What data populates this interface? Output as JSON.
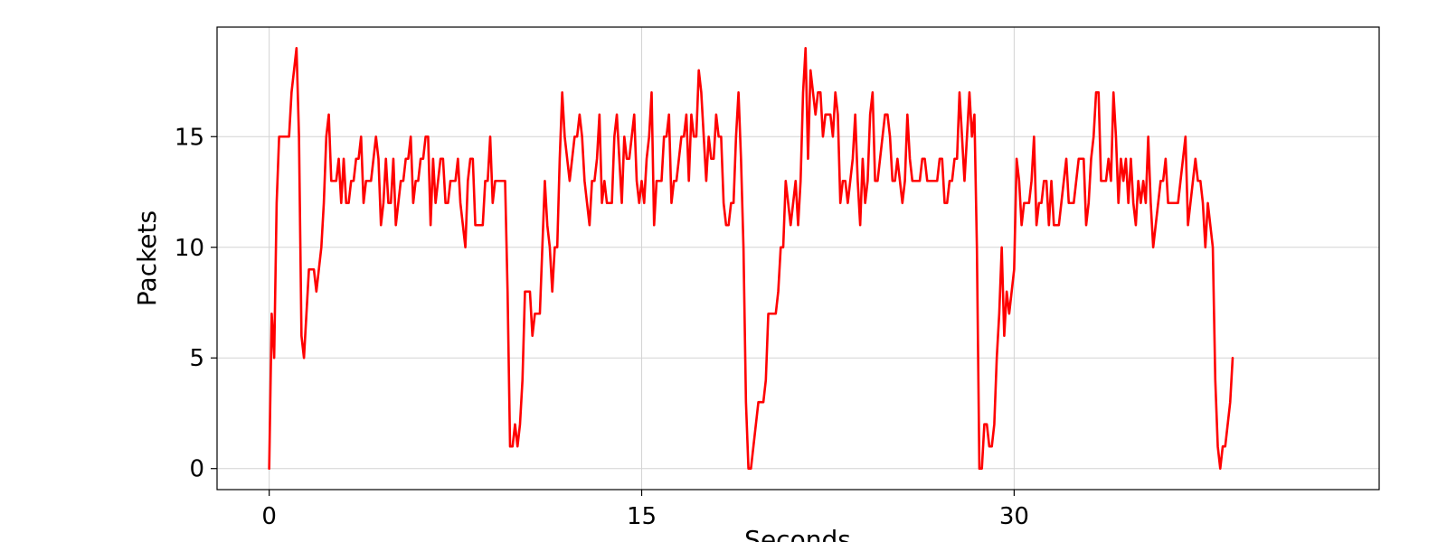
{
  "chart_data": {
    "type": "line",
    "xlabel": "Seconds",
    "ylabel": "Packets",
    "xlim": [
      -2.1,
      44.7
    ],
    "ylim": [
      -0.95,
      19.95
    ],
    "x_ticks": [
      0,
      15,
      30
    ],
    "x_tick_labels": [
      "0",
      "15",
      "30"
    ],
    "y_ticks": [
      0,
      5,
      10,
      15
    ],
    "y_tick_labels": [
      "0",
      "5",
      "10",
      "15"
    ],
    "grid": true,
    "legend": "none",
    "color": "#ff0000",
    "x_step": 0.1,
    "series": [
      {
        "values": [
          0,
          7,
          5,
          12,
          15,
          15,
          15,
          15,
          15,
          17,
          18,
          19,
          15,
          6,
          5,
          7,
          9,
          9,
          9,
          8,
          9,
          10,
          12,
          15,
          16,
          13,
          13,
          13,
          14,
          12,
          14,
          12,
          12,
          13,
          13,
          14,
          14,
          15,
          12,
          13,
          13,
          13,
          14,
          15,
          14,
          11,
          12,
          14,
          12,
          12,
          14,
          11,
          12,
          13,
          13,
          14,
          14,
          15,
          12,
          13,
          13,
          14,
          14,
          15,
          15,
          11,
          14,
          12,
          13,
          14,
          14,
          12,
          12,
          13,
          13,
          13,
          14,
          12,
          11,
          10,
          13,
          14,
          14,
          11,
          11,
          11,
          11,
          13,
          13,
          15,
          12,
          13,
          13,
          13,
          13,
          13,
          8,
          1,
          1,
          2,
          1,
          2,
          4,
          8,
          8,
          8,
          6,
          7,
          7,
          7,
          10,
          13,
          11,
          10,
          8,
          10,
          10,
          14,
          17,
          15,
          14,
          13,
          14,
          15,
          15,
          16,
          15,
          13,
          12,
          11,
          13,
          13,
          14,
          16,
          12,
          13,
          12,
          12,
          12,
          15,
          16,
          14,
          12,
          15,
          14,
          14,
          15,
          16,
          13,
          12,
          13,
          12,
          14,
          15,
          17,
          11,
          13,
          13,
          13,
          15,
          15,
          16,
          12,
          13,
          13,
          14,
          15,
          15,
          16,
          13,
          16,
          15,
          15,
          18,
          17,
          15,
          13,
          15,
          14,
          14,
          16,
          15,
          15,
          12,
          11,
          11,
          12,
          12,
          15,
          17,
          14,
          10,
          3,
          0,
          0,
          1,
          2,
          3,
          3,
          3,
          4,
          7,
          7,
          7,
          7,
          8,
          10,
          10,
          13,
          12,
          11,
          12,
          13,
          11,
          13,
          17,
          19,
          14,
          18,
          17,
          16,
          17,
          17,
          15,
          16,
          16,
          16,
          15,
          17,
          16,
          12,
          13,
          13,
          12,
          13,
          14,
          16,
          13,
          11,
          14,
          12,
          13,
          16,
          17,
          13,
          13,
          14,
          15,
          16,
          16,
          15,
          13,
          13,
          14,
          13,
          12,
          13,
          16,
          14,
          13,
          13,
          13,
          13,
          14,
          14,
          13,
          13,
          13,
          13,
          13,
          14,
          14,
          12,
          12,
          13,
          13,
          14,
          14,
          17,
          15,
          13,
          15,
          17,
          15,
          16,
          10,
          0,
          0,
          2,
          2,
          1,
          1,
          2,
          5,
          7,
          10,
          6,
          8,
          7,
          8,
          9,
          14,
          13,
          11,
          12,
          12,
          12,
          13,
          15,
          11,
          12,
          12,
          13,
          13,
          11,
          13,
          11,
          11,
          11,
          12,
          13,
          14,
          12,
          12,
          12,
          13,
          14,
          14,
          14,
          11,
          12,
          14,
          15,
          17,
          17,
          13,
          13,
          13,
          14,
          13,
          17,
          15,
          12,
          14,
          13,
          14,
          12,
          14,
          12,
          11,
          13,
          12,
          13,
          12,
          15,
          12,
          10,
          11,
          12,
          13,
          13,
          14,
          12,
          12,
          12,
          12,
          12,
          13,
          14,
          15,
          11,
          12,
          13,
          14,
          13,
          13,
          12,
          10,
          12,
          11,
          10,
          4,
          1,
          0,
          1,
          1,
          2,
          3,
          5
        ]
      }
    ]
  }
}
